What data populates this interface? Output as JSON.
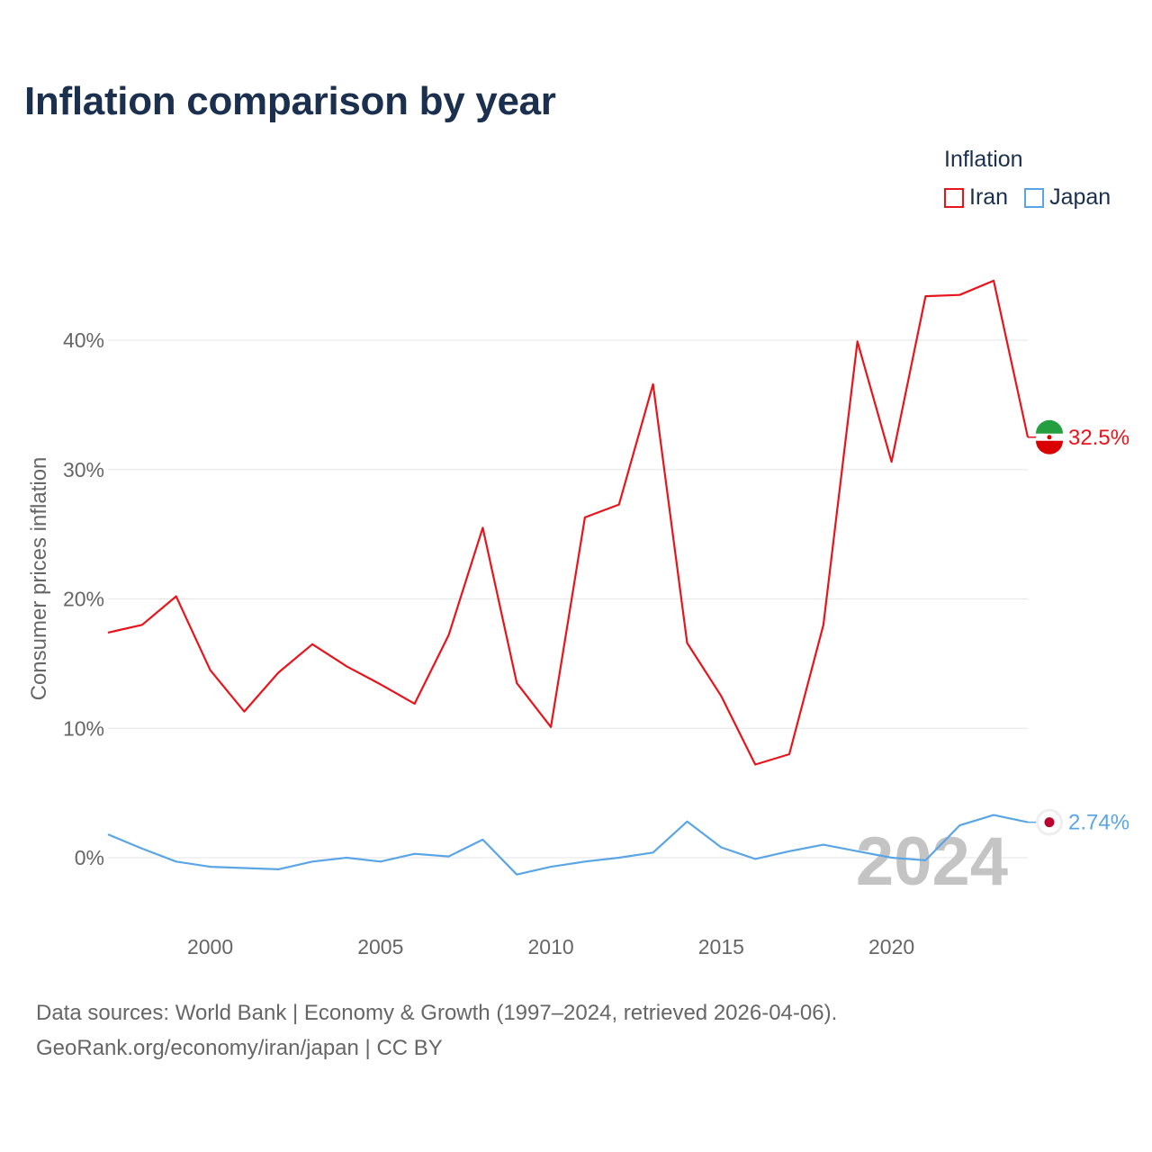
{
  "title": "Inflation comparison by year",
  "legend": {
    "title": "Inflation",
    "items": [
      {
        "label": "Iran",
        "color": "#e8141b"
      },
      {
        "label": "Japan",
        "color": "#5aa5e6"
      }
    ]
  },
  "source": {
    "line1": "Data sources: World Bank | Economy & Growth (1997–2024, retrieved 2026-04-06).",
    "line2": "GeoRank.org/economy/iran/japan | CC BY"
  },
  "chart_data": {
    "type": "line",
    "ylabel": "Consumer prices inflation",
    "ylim": [
      -5,
      45
    ],
    "xlim": [
      1997,
      2024
    ],
    "yticks": [
      0,
      10,
      20,
      30,
      40
    ],
    "ytick_labels": [
      "0%",
      "10%",
      "20%",
      "30%",
      "40%"
    ],
    "xticks": [
      2000,
      2005,
      2010,
      2015,
      2020
    ],
    "xtick_labels": [
      "2000",
      "2005",
      "2010",
      "2015",
      "2020"
    ],
    "watermark_year": "2024",
    "x": [
      1997,
      1998,
      1999,
      2000,
      2001,
      2002,
      2003,
      2004,
      2005,
      2006,
      2007,
      2008,
      2009,
      2010,
      2011,
      2012,
      2013,
      2014,
      2015,
      2016,
      2017,
      2018,
      2019,
      2020,
      2021,
      2022,
      2023,
      2024
    ],
    "series": [
      {
        "name": "Iran",
        "color": "#e8141b",
        "end_label": "32.5%",
        "flag": "iran-flag",
        "values": [
          17.4,
          18.0,
          20.2,
          14.5,
          11.3,
          14.3,
          16.5,
          14.8,
          13.4,
          11.9,
          17.2,
          25.5,
          13.5,
          10.1,
          26.3,
          27.3,
          36.6,
          16.6,
          12.5,
          7.2,
          8.0,
          18.0,
          39.9,
          30.6,
          43.4,
          43.5,
          44.6,
          32.5
        ]
      },
      {
        "name": "Japan",
        "color": "#5aa5e6",
        "end_label": "2.74%",
        "flag": "japan-flag",
        "values": [
          1.8,
          0.7,
          -0.3,
          -0.7,
          -0.8,
          -0.9,
          -0.3,
          0.0,
          -0.3,
          0.3,
          0.1,
          1.4,
          -1.3,
          -0.7,
          -0.3,
          0.0,
          0.4,
          2.8,
          0.8,
          -0.1,
          0.5,
          1.0,
          0.5,
          0.0,
          -0.2,
          2.5,
          3.3,
          2.74
        ]
      }
    ]
  }
}
